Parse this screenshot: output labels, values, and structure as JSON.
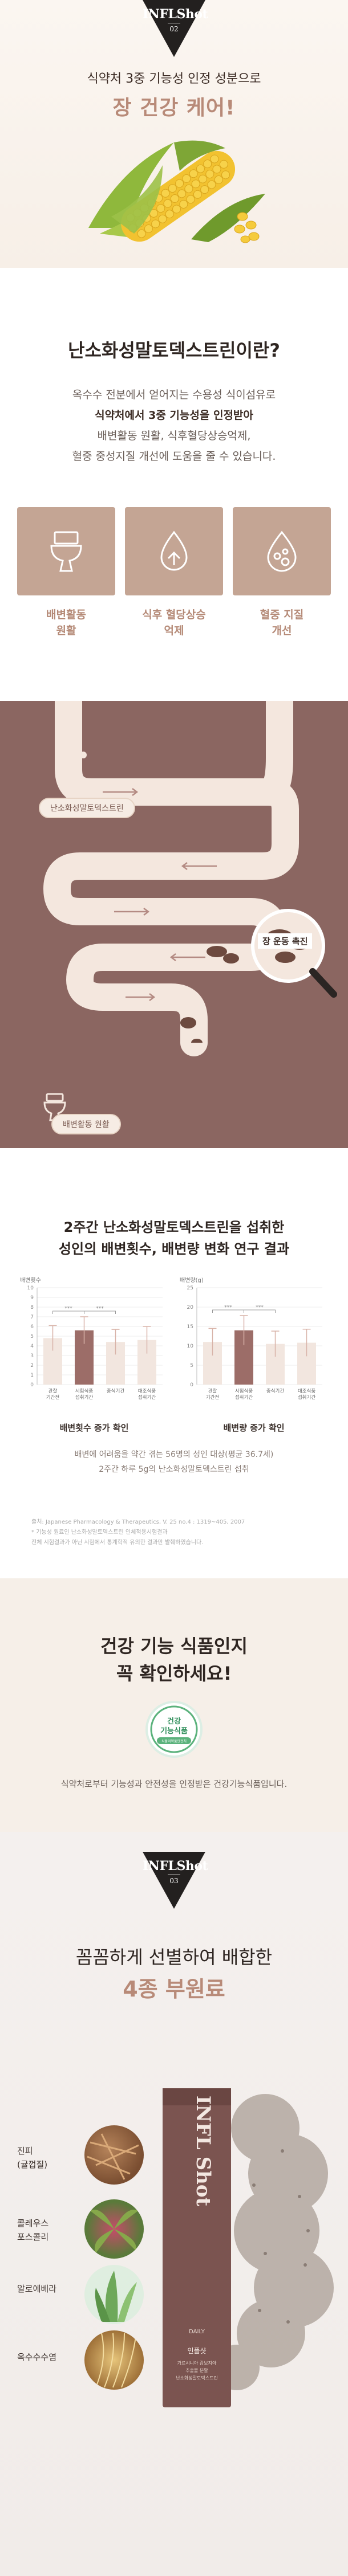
{
  "badge1": {
    "title": "INFLShot",
    "number": "02"
  },
  "hero": {
    "subtitle": "식약처 3중 기능성 인정 성분으로",
    "headline": "장 건강 케어!"
  },
  "definition": {
    "title": "난소화성말토덱스트린이란?",
    "lines": [
      "옥수수 전분에서 얻어지는 수용성 식이섬유로",
      "식약처에서 3중 기능성을 인정받아",
      "배변활동 원활, 식후혈당상승억제,",
      "혈중 중성지질 개선에 도움을 줄 수 있습니다."
    ],
    "icons": [
      {
        "icon": "toilet-icon",
        "label1": "배변활동",
        "label2": "원활"
      },
      {
        "icon": "blood-sugar-icon",
        "label1": "식후 혈당상승",
        "label2": "억제"
      },
      {
        "icon": "lipid-drop-icon",
        "label1": "혈중 지질",
        "label2": "개선"
      }
    ]
  },
  "gut": {
    "label_top": "난소화성말토덱스트린",
    "label_zoom": "장 운동 촉진",
    "label_bottom": "배변활동 원활"
  },
  "study": {
    "title_line1": "2주간 난소화성말토덱스트린을 섭취한",
    "title_line2": "성인의 배변횟수, 배변량 변화 연구 결과",
    "note_line1": "배변에 어려움을 약간 겪는 56명의 성인 대상(평균 36.7세)",
    "note_line2": "2주간 하루 5g의 난소화성말토덱스트린 섭취",
    "ref_line1": "출처: Japanese Pharmacology & Therapeutics, V. 25 no.4 : 1319~405, 2007",
    "ref_line2": "* 기능성 원료인 난소화성말토덱스트린 인체적용시험결과",
    "ref_line3": "전체 시험결과가 아닌 시험에서 통계학적 유의한 결과만 발췌하였습니다."
  },
  "chart_data": [
    {
      "type": "bar",
      "title": "배변횟수",
      "result": "배변횟수 증가 확인",
      "categories": [
        "관찰 기간전",
        "시험식품 섭취기간",
        "중식기간",
        "대조식품 섭취기간"
      ],
      "values": [
        4.8,
        5.6,
        4.4,
        4.6
      ],
      "errors": [
        1.3,
        1.4,
        1.3,
        1.4
      ],
      "ylim": [
        0,
        10
      ],
      "yticks": [
        0,
        1,
        2,
        3,
        4,
        5,
        6,
        7,
        8,
        9,
        10
      ],
      "highlight_index": 1,
      "significance": "***",
      "colors": {
        "normal": "#f2e6df",
        "highlight": "#9c6d68",
        "error": "#d8b3a8"
      }
    },
    {
      "type": "bar",
      "title": "배변량(g)",
      "result": "배변량 증가 확인",
      "categories": [
        "관찰 기간전",
        "시험식품 섭취기간",
        "중식기간",
        "대조식품 섭취기간"
      ],
      "values": [
        11.0,
        14.0,
        10.5,
        10.8
      ],
      "errors": [
        3.5,
        3.8,
        3.3,
        3.5
      ],
      "ylim": [
        0,
        25
      ],
      "yticks": [
        0,
        5,
        10,
        15,
        20,
        25
      ],
      "highlight_index": 1,
      "significance": "***",
      "colors": {
        "normal": "#f2e6df",
        "highlight": "#9c6d68",
        "error": "#d8b3a8"
      }
    }
  ],
  "cert": {
    "title_line1": "건강 기능 식품인지",
    "title_line2": "꼭 확인하세요!",
    "badge_line1": "건강",
    "badge_line2": "기능식품",
    "badge_small": "식품의약품안전처",
    "text": "식약처로부터 기능성과 안전성을 인정받은 건강기능식품입니다."
  },
  "badge2": {
    "title": "INFLShot",
    "number": "03"
  },
  "ingredients": {
    "subtitle": "꼼꼼하게 선별하여 배합한",
    "headline": "4종 부원료",
    "items": [
      {
        "line1": "진피",
        "line2": "(귤껍질)"
      },
      {
        "line1": "콜레우스",
        "line2": "포스콜리"
      },
      {
        "line1": "알로에베라",
        "line2": ""
      },
      {
        "line1": "옥수수수염",
        "line2": ""
      }
    ],
    "product": {
      "brand": "INFL Shot",
      "line1": "DAILY",
      "line2": "인플샷",
      "line3": "가르시니아 캄보지아",
      "line4": "추출물 분말",
      "line5": "난소화성말토덱스트린"
    }
  }
}
